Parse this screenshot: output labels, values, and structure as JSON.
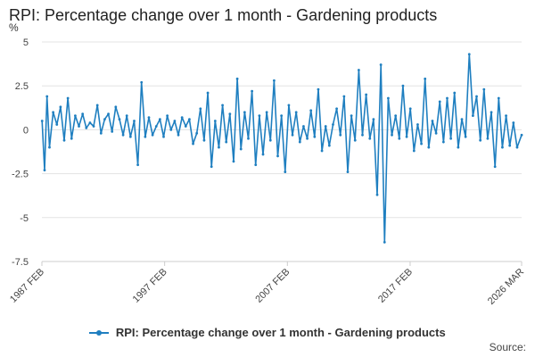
{
  "chart_data": {
    "type": "line",
    "title": "RPI: Percentage change over 1 month - Gardening products",
    "ylabel": "%",
    "xlabel": "",
    "ylim": [
      -7.5,
      5
    ],
    "yticks": [
      5,
      2.5,
      0,
      -2.5,
      -5,
      -7.5
    ],
    "ytick_labels": [
      "5",
      "2.5",
      "0",
      "-2.5",
      "-5",
      "-7.5"
    ],
    "x_range": [
      "1987 FEB",
      "2026 MAR"
    ],
    "xtick_labels": [
      "1987 FEB",
      "1997 FEB",
      "2007 FEB",
      "2017 FEB",
      "2026 MAR"
    ],
    "xtick_years": [
      1987.083,
      1997.083,
      2007.083,
      2017.083,
      2026.167
    ],
    "series": [
      {
        "name": "RPI: Percentage change over 1 month - Gardening products",
        "color": "#1f7fc0",
        "approximate": true,
        "sampling": "approximately every 3 months, read from the plotted line",
        "x": [
          1987.1,
          1987.3,
          1987.5,
          1987.7,
          1988.0,
          1988.3,
          1988.6,
          1988.9,
          1989.2,
          1989.5,
          1989.8,
          1990.1,
          1990.4,
          1990.7,
          1991.0,
          1991.3,
          1991.6,
          1991.9,
          1992.2,
          1992.5,
          1992.8,
          1993.1,
          1993.4,
          1993.7,
          1994.0,
          1994.3,
          1994.6,
          1994.9,
          1995.2,
          1995.5,
          1995.8,
          1996.1,
          1996.4,
          1996.7,
          1997.0,
          1997.3,
          1997.6,
          1997.9,
          1998.2,
          1998.5,
          1998.8,
          1999.1,
          1999.4,
          1999.7,
          2000.0,
          2000.3,
          2000.6,
          2000.9,
          2001.2,
          2001.5,
          2001.8,
          2002.1,
          2002.4,
          2002.7,
          2003.0,
          2003.3,
          2003.6,
          2003.9,
          2004.2,
          2004.5,
          2004.8,
          2005.1,
          2005.4,
          2005.7,
          2006.0,
          2006.3,
          2006.6,
          2006.9,
          2007.2,
          2007.5,
          2007.8,
          2008.1,
          2008.4,
          2008.7,
          2009.0,
          2009.3,
          2009.6,
          2009.9,
          2010.2,
          2010.5,
          2010.8,
          2011.1,
          2011.4,
          2011.7,
          2012.0,
          2012.3,
          2012.6,
          2012.9,
          2013.2,
          2013.5,
          2013.8,
          2014.1,
          2014.4,
          2014.7,
          2015.0,
          2015.3,
          2015.6,
          2015.9,
          2016.2,
          2016.5,
          2016.8,
          2017.1,
          2017.4,
          2017.7,
          2018.0,
          2018.3,
          2018.6,
          2018.9,
          2019.2,
          2019.5,
          2019.8,
          2020.1,
          2020.4,
          2020.7,
          2021.0,
          2021.3,
          2021.6,
          2021.9,
          2022.2,
          2022.5,
          2022.8,
          2023.1,
          2023.4,
          2023.7,
          2024.0,
          2024.3,
          2024.6,
          2024.9,
          2025.2,
          2025.5,
          2025.8,
          2026.17
        ],
        "values": [
          0.5,
          -2.3,
          1.9,
          -1.0,
          1.0,
          0.3,
          1.3,
          -0.6,
          1.8,
          -0.5,
          0.8,
          0.2,
          0.9,
          0.1,
          0.4,
          0.2,
          1.4,
          -0.2,
          0.6,
          0.9,
          -0.1,
          1.3,
          0.6,
          -0.3,
          0.8,
          -0.4,
          0.5,
          -2.0,
          2.7,
          -0.4,
          0.7,
          -0.3,
          0.2,
          0.6,
          -0.4,
          0.8,
          0.0,
          0.5,
          -0.3,
          0.7,
          0.2,
          0.6,
          -0.8,
          -0.2,
          1.2,
          -0.6,
          2.1,
          -2.1,
          0.5,
          -1.0,
          1.4,
          -0.7,
          0.9,
          -1.8,
          2.9,
          -1.1,
          1.0,
          -0.5,
          2.2,
          -2.0,
          0.8,
          -1.4,
          1.0,
          -0.6,
          2.8,
          -1.5,
          0.8,
          -2.4,
          1.4,
          -0.3,
          1.0,
          -0.7,
          0.2,
          -0.5,
          1.1,
          -0.4,
          2.3,
          -1.2,
          0.2,
          -0.9,
          0.3,
          1.2,
          -0.3,
          1.9,
          -2.4,
          0.8,
          -0.6,
          3.4,
          -0.3,
          2.0,
          -0.5,
          0.6,
          -3.7,
          3.7,
          -6.4,
          1.8,
          -0.3,
          0.8,
          -0.5,
          2.5,
          -0.4,
          1.2,
          -1.2,
          0.3,
          -0.8,
          2.9,
          -1.0,
          0.5,
          -0.2,
          1.6,
          -0.7,
          1.8,
          -0.5,
          2.1,
          -1.0,
          0.6,
          -0.4,
          4.3,
          0.8,
          1.9,
          -0.6,
          2.3,
          -0.5,
          1.0,
          -2.1,
          1.8,
          -1.0,
          0.8,
          -0.9,
          0.4,
          -1.0,
          -0.3
        ]
      }
    ],
    "legend": "bottom-center",
    "grid": "horizontal",
    "source_label": "Source:"
  }
}
